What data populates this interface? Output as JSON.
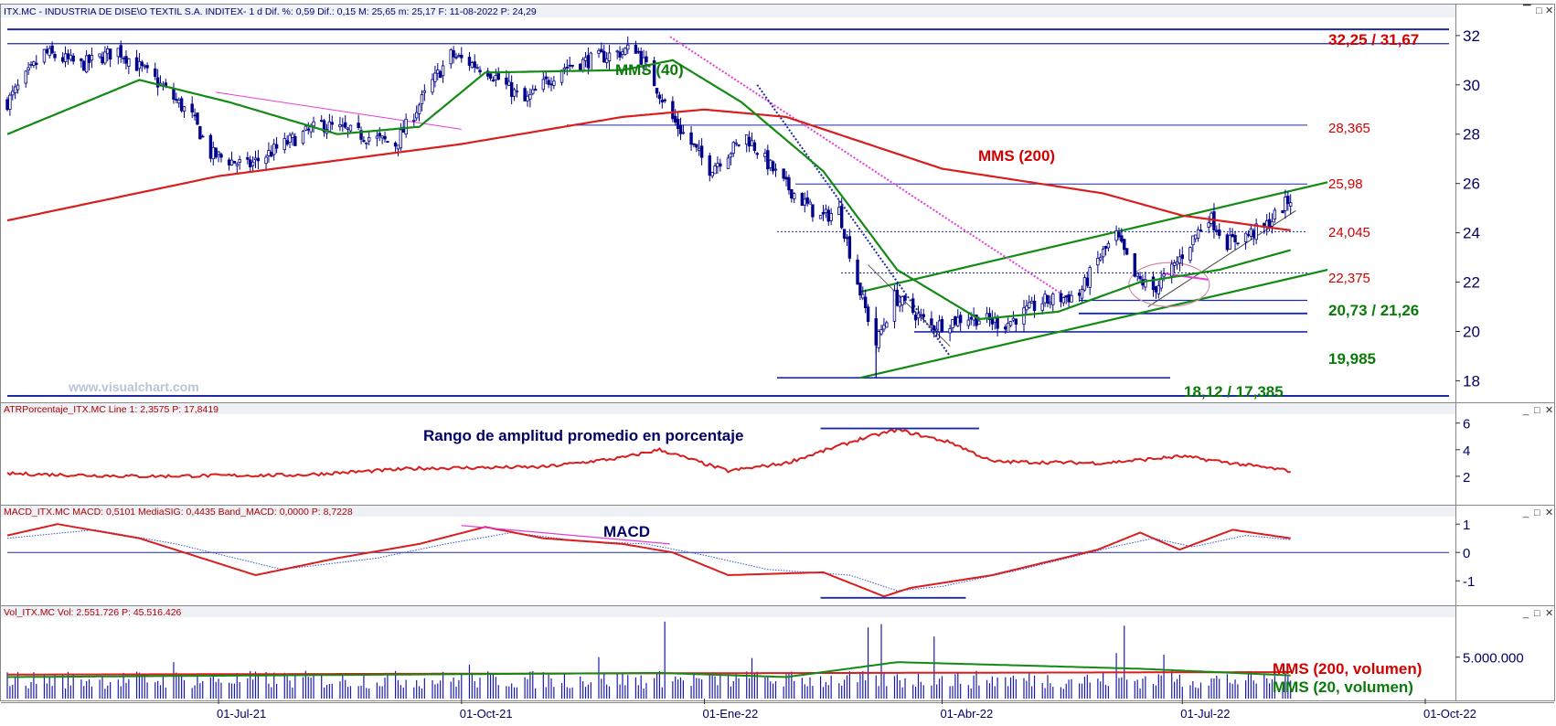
{
  "panels": {
    "price": {
      "header": "ITX.MC - INDUSTRIA DE DISE\\O TEXTIL S.A. INDITEX-  1 d  Dif. %: 0,59  Dif.: 0,15  M: 25,65  m: 25,17  F: 11-08-2022  P: 24,29",
      "watermark": "www.visualchart.com"
    },
    "atr": {
      "header": "ATRPorcentaje_ITX.MC  Line 1: 2,3575  P: 17,8419"
    },
    "macd": {
      "header": "MACD_ITX.MC  MACD: 0,5101  MediaSIG: 0,4435  Band_MACD: 0,0000  P: 8,7228"
    },
    "volume": {
      "header": "Vol_ITX.MC  Vol: 2.551.726  P: 45.516.426"
    }
  },
  "colors": {
    "candle": "#00008b",
    "mms40": "#138a13",
    "mms200": "#d81e1e",
    "macd": "#d81e1e",
    "signal": "#3355cc",
    "pink": "#e33ed8",
    "level": "#1c2aa6"
  },
  "chart_data": [
    {
      "type": "candlestick",
      "panel": "price",
      "title": "ITX.MC - INDUSTRIA DE DISE\\O TEXTIL S.A. INDITEX-",
      "x_ticks": [
        "01-Jul-21",
        "01-Oct-21",
        "01-Ene-22",
        "01-Abr-22",
        "01-Jul-22",
        "01-Oct-22"
      ],
      "x_tick_dates": [
        "2021-07-01",
        "2021-10-01",
        "2022-01-01",
        "2022-04-01",
        "2022-07-01",
        "2022-10-01"
      ],
      "x_range": [
        "2021-04-12",
        "2022-10-10"
      ],
      "ylim": [
        17.2,
        32.7
      ],
      "y_ticks": [
        18,
        20,
        22,
        24,
        26,
        28,
        30,
        32
      ],
      "y_tick_labels": [
        "18",
        "20",
        "22",
        "24",
        "26",
        "28",
        "30",
        "32"
      ],
      "close_anchors": [
        [
          "2021-04-12",
          29.3
        ],
        [
          "2021-04-26",
          31.3
        ],
        [
          "2021-05-10",
          30.8
        ],
        [
          "2021-05-24",
          31.4
        ],
        [
          "2021-06-07",
          30.2
        ],
        [
          "2021-06-21",
          28.7
        ],
        [
          "2021-06-28",
          27.2
        ],
        [
          "2021-07-12",
          26.7
        ],
        [
          "2021-07-26",
          27.6
        ],
        [
          "2021-08-09",
          28.4
        ],
        [
          "2021-08-23",
          28.0
        ],
        [
          "2021-09-06",
          27.6
        ],
        [
          "2021-09-20",
          30.1
        ],
        [
          "2021-09-27",
          31.2
        ],
        [
          "2021-10-11",
          30.6
        ],
        [
          "2021-10-25",
          29.3
        ],
        [
          "2021-11-08",
          30.7
        ],
        [
          "2021-11-22",
          31.1
        ],
        [
          "2021-12-06",
          31.5
        ],
        [
          "2021-12-13",
          30.1
        ],
        [
          "2021-12-20",
          28.6
        ],
        [
          "2022-01-03",
          26.6
        ],
        [
          "2022-01-17",
          27.9
        ],
        [
          "2022-01-31",
          26.0
        ],
        [
          "2022-02-14",
          24.6
        ],
        [
          "2022-02-21",
          24.9
        ],
        [
          "2022-03-01",
          21.6
        ],
        [
          "2022-03-07",
          19.5
        ],
        [
          "2022-03-14",
          21.4
        ],
        [
          "2022-03-28",
          20.2
        ],
        [
          "2022-04-11",
          20.6
        ],
        [
          "2022-04-25",
          20.3
        ],
        [
          "2022-05-09",
          21.2
        ],
        [
          "2022-05-23",
          21.5
        ],
        [
          "2022-05-30",
          22.9
        ],
        [
          "2022-06-06",
          23.9
        ],
        [
          "2022-06-13",
          22.2
        ],
        [
          "2022-06-20",
          21.7
        ],
        [
          "2022-06-27",
          22.5
        ],
        [
          "2022-07-11",
          24.7
        ],
        [
          "2022-07-18",
          23.6
        ],
        [
          "2022-08-01",
          24.2
        ],
        [
          "2022-08-11",
          25.4
        ]
      ],
      "mms40_anchors": [
        [
          "2021-04-12",
          28.0
        ],
        [
          "2021-06-01",
          30.2
        ],
        [
          "2021-07-05",
          29.3
        ],
        [
          "2021-08-15",
          28.0
        ],
        [
          "2021-09-15",
          28.3
        ],
        [
          "2021-10-10",
          30.5
        ],
        [
          "2021-12-01",
          30.6
        ],
        [
          "2021-12-20",
          31.0
        ],
        [
          "2022-01-15",
          29.3
        ],
        [
          "2022-02-15",
          26.5
        ],
        [
          "2022-03-15",
          22.5
        ],
        [
          "2022-04-15",
          20.5
        ],
        [
          "2022-05-15",
          20.8
        ],
        [
          "2022-06-15",
          22.0
        ],
        [
          "2022-07-15",
          22.5
        ],
        [
          "2022-08-11",
          23.3
        ]
      ],
      "mms200_anchors": [
        [
          "2021-04-12",
          24.5
        ],
        [
          "2021-07-01",
          26.3
        ],
        [
          "2021-10-01",
          27.6
        ],
        [
          "2021-12-01",
          28.7
        ],
        [
          "2022-01-01",
          29.0
        ],
        [
          "2022-02-01",
          28.7
        ],
        [
          "2022-04-01",
          26.6
        ],
        [
          "2022-06-01",
          25.6
        ],
        [
          "2022-07-01",
          24.7
        ],
        [
          "2022-08-11",
          24.1
        ]
      ],
      "levels": [
        32.25,
        31.67,
        28.365,
        25.98,
        24.045,
        22.375,
        21.26,
        20.73,
        19.985,
        18.12,
        17.385
      ],
      "level_labels": [
        "32,25 / 31,67",
        "28,365",
        "25,98",
        "24,045",
        "22,375",
        "20,73 / 21,26",
        "19,985",
        "18,12 / 17,385"
      ],
      "series_labels": [
        "MMS (40)",
        "MMS (200)"
      ]
    },
    {
      "type": "line",
      "panel": "atr",
      "title": "ATRPorcentaje_ITX.MC",
      "ylim": [
        0,
        6.6
      ],
      "y_ticks": [
        2,
        4,
        6
      ],
      "y_tick_labels": [
        "2",
        "4",
        "6"
      ],
      "series": [
        {
          "name": "ATRPorcentaje_ITX.MC",
          "points": [
            [
              "2021-04-12",
              2.2
            ],
            [
              "2021-06-01",
              2.0
            ],
            [
              "2021-08-01",
              2.1
            ],
            [
              "2021-09-15",
              2.6
            ],
            [
              "2021-11-01",
              2.7
            ],
            [
              "2021-12-01",
              3.4
            ],
            [
              "2021-12-15",
              4.0
            ],
            [
              "2022-01-10",
              2.4
            ],
            [
              "2022-02-01",
              3.0
            ],
            [
              "2022-03-01",
              4.8
            ],
            [
              "2022-03-15",
              5.5
            ],
            [
              "2022-04-05",
              4.5
            ],
            [
              "2022-04-20",
              3.1
            ],
            [
              "2022-06-01",
              3.0
            ],
            [
              "2022-07-01",
              3.5
            ],
            [
              "2022-08-11",
              2.4
            ]
          ]
        }
      ],
      "series_labels": [
        "Rango de amplitud promedio en porcentaje"
      ]
    },
    {
      "type": "line",
      "panel": "macd",
      "title": "MACD_ITX.MC",
      "ylim": [
        -1.8,
        1.2
      ],
      "y_ticks": [
        1,
        0,
        -1
      ],
      "y_tick_labels": [
        "1",
        "0",
        "-1"
      ],
      "series": [
        {
          "name": "MACD",
          "points": [
            [
              "2021-04-12",
              0.6
            ],
            [
              "2021-05-01",
              1.0
            ],
            [
              "2021-06-01",
              0.5
            ],
            [
              "2021-07-15",
              -0.8
            ],
            [
              "2021-08-15",
              -0.2
            ],
            [
              "2021-09-15",
              0.3
            ],
            [
              "2021-10-10",
              0.9
            ],
            [
              "2021-11-01",
              0.5
            ],
            [
              "2021-12-01",
              0.3
            ],
            [
              "2021-12-20",
              0.0
            ],
            [
              "2022-01-10",
              -0.8
            ],
            [
              "2022-02-15",
              -0.7
            ],
            [
              "2022-03-10",
              -1.55
            ],
            [
              "2022-03-20",
              -1.25
            ],
            [
              "2022-04-20",
              -0.8
            ],
            [
              "2022-05-30",
              0.1
            ],
            [
              "2022-06-15",
              0.7
            ],
            [
              "2022-06-30",
              0.1
            ],
            [
              "2022-07-20",
              0.8
            ],
            [
              "2022-08-11",
              0.5
            ]
          ]
        },
        {
          "name": "MediaSIG",
          "points": [
            [
              "2021-04-12",
              0.5
            ],
            [
              "2021-05-15",
              0.8
            ],
            [
              "2021-06-15",
              0.3
            ],
            [
              "2021-07-25",
              -0.6
            ],
            [
              "2021-08-30",
              -0.2
            ],
            [
              "2021-09-25",
              0.3
            ],
            [
              "2021-10-20",
              0.7
            ],
            [
              "2021-11-15",
              0.4
            ],
            [
              "2021-12-10",
              0.3
            ],
            [
              "2022-01-01",
              -0.1
            ],
            [
              "2022-01-25",
              -0.6
            ],
            [
              "2022-02-25",
              -0.8
            ],
            [
              "2022-03-15",
              -1.35
            ],
            [
              "2022-04-01",
              -1.2
            ],
            [
              "2022-05-01",
              -0.6
            ],
            [
              "2022-06-05",
              0.2
            ],
            [
              "2022-06-20",
              0.5
            ],
            [
              "2022-07-05",
              0.2
            ],
            [
              "2022-07-25",
              0.6
            ],
            [
              "2022-08-11",
              0.45
            ]
          ]
        }
      ],
      "series_labels": [
        "MACD"
      ]
    },
    {
      "type": "bar",
      "panel": "volume",
      "title": "Vol_ITX.MC",
      "ylim": [
        0,
        9500000
      ],
      "y_ticks": [
        5000000
      ],
      "y_tick_labels": [
        "5.000.000"
      ],
      "base_volume": 2600000,
      "spikes": [
        [
          "2021-04-24",
          5200000
        ],
        [
          "2021-06-14",
          4400000
        ],
        [
          "2021-07-24",
          3500000
        ],
        [
          "2021-10-04",
          4100000
        ],
        [
          "2021-11-22",
          5000000
        ],
        [
          "2021-12-17",
          9300000
        ],
        [
          "2022-01-19",
          4900000
        ],
        [
          "2022-03-04",
          8600000
        ],
        [
          "2022-03-09",
          9000000
        ],
        [
          "2022-03-13",
          9200000
        ],
        [
          "2022-03-29",
          7500000
        ],
        [
          "2022-06-06",
          5500000
        ],
        [
          "2022-06-09",
          8800000
        ],
        [
          "2022-06-24",
          5300000
        ]
      ],
      "mms200_anchors": [
        [
          "2021-04-12",
          2900000
        ],
        [
          "2022-08-11",
          3200000
        ]
      ],
      "mms20_anchors": [
        [
          "2021-04-12",
          2600000
        ],
        [
          "2021-12-15",
          3100000
        ],
        [
          "2022-02-01",
          2600000
        ],
        [
          "2022-03-15",
          4400000
        ],
        [
          "2022-05-01",
          4000000
        ],
        [
          "2022-06-15",
          3600000
        ],
        [
          "2022-08-11",
          2800000
        ]
      ],
      "series_labels": [
        "MMS (200, volumen)",
        "MMS (20, volumen)"
      ]
    }
  ]
}
